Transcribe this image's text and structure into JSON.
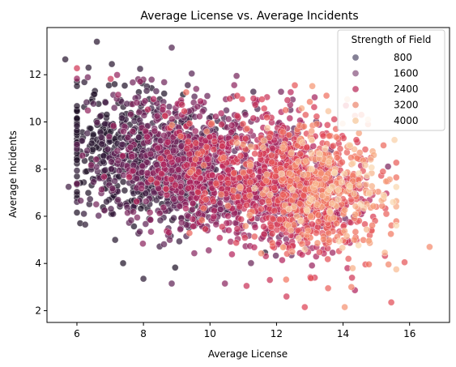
{
  "chart_data": {
    "type": "scatter",
    "title": "Average License vs. Average Incidents",
    "xlabel": "Average License",
    "ylabel": "Average Incidents",
    "xlim": [
      5.1,
      17.2
    ],
    "ylim": [
      1.5,
      14.0
    ],
    "xticks": [
      "6",
      "8",
      "10",
      "12",
      "14",
      "16"
    ],
    "yticks": [
      "2",
      "4",
      "6",
      "8",
      "10",
      "12"
    ],
    "grid": false,
    "legend": {
      "title": "Strength of Field",
      "placement": "top-right",
      "entries": [
        {
          "label": "800",
          "color": "#6e6a82"
        },
        {
          "label": "1600",
          "color": "#9a6f93"
        },
        {
          "label": "2400",
          "color": "#c34a72"
        },
        {
          "label": "3200",
          "color": "#ef9a86"
        },
        {
          "label": "4000",
          "color": "#f7cfa8"
        }
      ]
    },
    "point_count": 3000,
    "points": [
      [
        5.65,
        12.65,
        250
      ],
      [
        6.6,
        13.4,
        250
      ],
      [
        7.05,
        12.45,
        250
      ],
      [
        8.85,
        13.15,
        800
      ],
      [
        6.35,
        12.3,
        250
      ],
      [
        7.9,
        12.25,
        400
      ],
      [
        9.45,
        12.05,
        900
      ],
      [
        10.8,
        11.95,
        1300
      ],
      [
        12.55,
        11.55,
        2900
      ],
      [
        13.0,
        10.85,
        3200
      ],
      [
        14.75,
        10.1,
        4200
      ],
      [
        14.55,
        10.3,
        3300
      ],
      [
        16.6,
        4.7,
        3400
      ],
      [
        15.85,
        4.05,
        2900
      ],
      [
        15.45,
        2.35,
        2800
      ],
      [
        14.05,
        2.15,
        3500
      ],
      [
        12.85,
        2.15,
        2700
      ],
      [
        12.3,
        2.6,
        2500
      ],
      [
        8.85,
        3.15,
        1000
      ],
      [
        5.75,
        7.25,
        600
      ],
      [
        6.25,
        5.65,
        300
      ],
      [
        7.15,
        5.0,
        200
      ],
      [
        8.0,
        3.35,
        300
      ],
      [
        6.0,
        7.4,
        400
      ],
      [
        15.3,
        6.1,
        3000
      ],
      [
        15.0,
        6.4,
        3100
      ],
      [
        13.55,
        2.95,
        3000
      ],
      [
        14.25,
        3.0,
        3300
      ],
      [
        11.1,
        3.05,
        2400
      ],
      [
        10.45,
        3.15,
        1600
      ],
      [
        13.15,
        3.4,
        2600
      ],
      [
        11.8,
        3.3,
        2400
      ]
    ]
  }
}
